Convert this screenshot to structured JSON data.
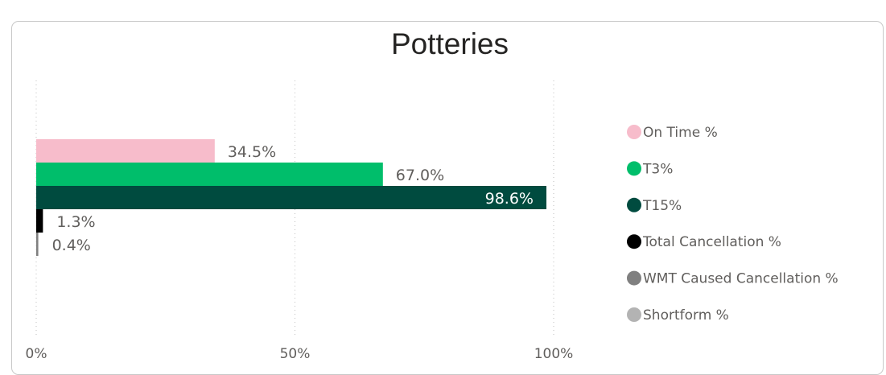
{
  "chart_data": {
    "type": "bar",
    "orientation": "horizontal",
    "title": "Potteries",
    "x_ticks": [
      "0%",
      "50%",
      "100%"
    ],
    "xlim": [
      0,
      100
    ],
    "grid": "vertical dotted",
    "legend_position": "right",
    "series": [
      {
        "name": "On Time %",
        "value": 34.5,
        "label": "34.5%",
        "color": "#f7bccb"
      },
      {
        "name": "T3%",
        "value": 67.0,
        "label": "67.0%",
        "color": "#00be6b"
      },
      {
        "name": "T15%",
        "value": 98.6,
        "label": "98.6%",
        "color": "#004b3f"
      },
      {
        "name": "Total Cancellation %",
        "value": 1.3,
        "label": "1.3%",
        "color": "#000000"
      },
      {
        "name": "WMT Caused Cancellation %",
        "value": 0.4,
        "label": "0.4%",
        "color": "#808080"
      },
      {
        "name": "Shortform %",
        "value": null,
        "label": "",
        "color": "#b3b3b3"
      }
    ]
  }
}
